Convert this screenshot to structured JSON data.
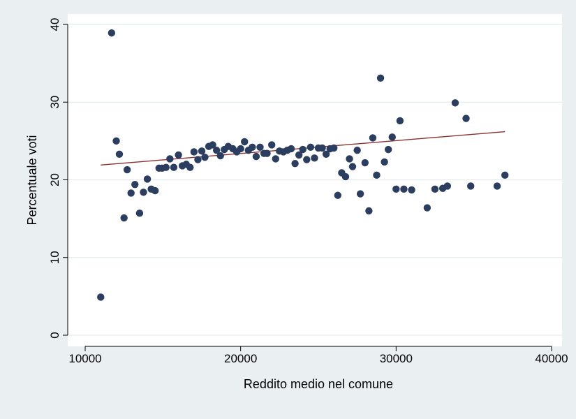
{
  "chart_data": {
    "type": "scatter",
    "xlabel": "Reddito medio nel comune",
    "ylabel": "Percentuale voti",
    "xlim": [
      10000,
      40000
    ],
    "ylim": [
      0,
      40
    ],
    "x_ticks": [
      10000,
      20000,
      30000,
      40000
    ],
    "y_ticks": [
      0,
      10,
      20,
      30,
      40
    ],
    "grid": "horizontal",
    "legend": "none",
    "colors": {
      "background": "#eaf0f2",
      "plot_area": "#ffffff",
      "marker": "#2b3e5f",
      "fit_line": "#8b2f2f",
      "grid": "#e4ecee"
    },
    "series": [
      {
        "kind": "scatter",
        "points": [
          [
            11000,
            4.9
          ],
          [
            11700,
            38.9
          ],
          [
            12000,
            25.0
          ],
          [
            12200,
            23.3
          ],
          [
            12500,
            15.1
          ],
          [
            12700,
            21.3
          ],
          [
            12950,
            18.3
          ],
          [
            13200,
            19.4
          ],
          [
            13500,
            15.7
          ],
          [
            13750,
            18.4
          ],
          [
            14000,
            20.1
          ],
          [
            14250,
            18.8
          ],
          [
            14500,
            18.6
          ],
          [
            14750,
            21.5
          ],
          [
            14950,
            21.5
          ],
          [
            15200,
            21.6
          ],
          [
            15450,
            22.7
          ],
          [
            15700,
            21.6
          ],
          [
            16000,
            23.2
          ],
          [
            16250,
            21.8
          ],
          [
            16500,
            22.0
          ],
          [
            16750,
            21.6
          ],
          [
            17000,
            23.6
          ],
          [
            17250,
            22.6
          ],
          [
            17500,
            23.7
          ],
          [
            17700,
            22.9
          ],
          [
            17950,
            24.3
          ],
          [
            18200,
            24.5
          ],
          [
            18450,
            23.8
          ],
          [
            18700,
            23.1
          ],
          [
            18950,
            23.9
          ],
          [
            19200,
            24.3
          ],
          [
            19500,
            24.0
          ],
          [
            19750,
            23.6
          ],
          [
            20000,
            24.0
          ],
          [
            20250,
            24.9
          ],
          [
            20500,
            23.8
          ],
          [
            20750,
            24.2
          ],
          [
            21000,
            23.0
          ],
          [
            21250,
            24.2
          ],
          [
            21500,
            23.4
          ],
          [
            21700,
            23.4
          ],
          [
            22000,
            24.5
          ],
          [
            22250,
            22.7
          ],
          [
            22500,
            23.7
          ],
          [
            22750,
            23.6
          ],
          [
            23000,
            23.8
          ],
          [
            23250,
            24.0
          ],
          [
            23500,
            22.1
          ],
          [
            23750,
            23.2
          ],
          [
            24000,
            23.9
          ],
          [
            24250,
            22.6
          ],
          [
            24500,
            24.2
          ],
          [
            24750,
            22.8
          ],
          [
            25000,
            24.1
          ],
          [
            25250,
            24.1
          ],
          [
            25500,
            23.3
          ],
          [
            25750,
            24.0
          ],
          [
            26000,
            24.1
          ],
          [
            26250,
            18.0
          ],
          [
            26500,
            20.9
          ],
          [
            26750,
            20.4
          ],
          [
            27000,
            22.7
          ],
          [
            27200,
            21.7
          ],
          [
            27500,
            23.8
          ],
          [
            27700,
            18.2
          ],
          [
            28000,
            22.2
          ],
          [
            28250,
            16.0
          ],
          [
            28500,
            25.4
          ],
          [
            28750,
            20.6
          ],
          [
            29000,
            33.1
          ],
          [
            29250,
            22.3
          ],
          [
            29500,
            23.9
          ],
          [
            29750,
            25.5
          ],
          [
            30000,
            18.8
          ],
          [
            30250,
            27.6
          ],
          [
            30500,
            18.8
          ],
          [
            31000,
            18.7
          ],
          [
            32000,
            16.4
          ],
          [
            32500,
            18.8
          ],
          [
            33000,
            18.9
          ],
          [
            33300,
            19.2
          ],
          [
            33800,
            29.9
          ],
          [
            34500,
            27.9
          ],
          [
            34800,
            19.2
          ],
          [
            36500,
            19.2
          ],
          [
            37000,
            20.6
          ]
        ]
      },
      {
        "kind": "line",
        "points": [
          [
            11000,
            21.9
          ],
          [
            37000,
            26.2
          ]
        ]
      }
    ]
  }
}
